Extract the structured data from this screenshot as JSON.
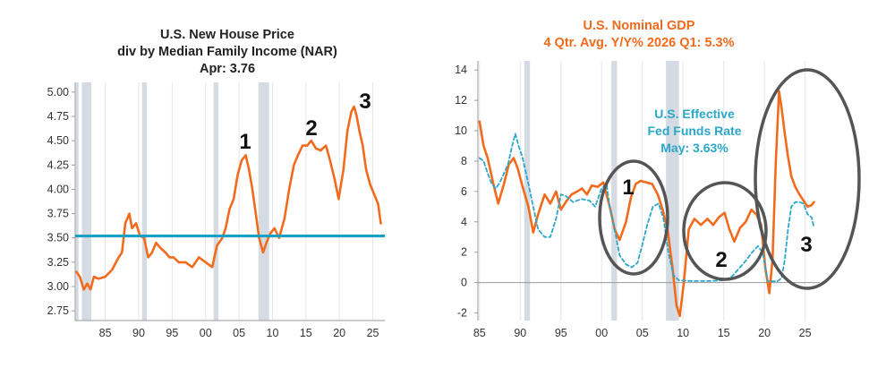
{
  "chart_data": [
    {
      "type": "line",
      "title": "U.S. New House Price",
      "subtitle": "div by Median Family Income (NAR)",
      "subtitle2": "Apr: 3.76",
      "xlabel": "",
      "ylabel": "",
      "xlim": [
        1980.5,
        2026.8
      ],
      "ylim": [
        2.65,
        5.1
      ],
      "x_ticks": [
        "85",
        "90",
        "95",
        "00",
        "05",
        "10",
        "15",
        "20",
        "25"
      ],
      "x_tick_values": [
        1985,
        1990,
        1995,
        2000,
        2005,
        2010,
        2015,
        2020,
        2025
      ],
      "y_ticks": [
        "2.75",
        "3.00",
        "3.25",
        "3.50",
        "3.75",
        "4.00",
        "4.25",
        "4.50",
        "4.75",
        "5.00"
      ],
      "y_tick_values": [
        2.75,
        3.0,
        3.25,
        3.5,
        3.75,
        4.0,
        4.25,
        4.5,
        4.75,
        5.0
      ],
      "grid": "vertical",
      "recessions": [
        [
          1980.6,
          1981.0
        ],
        [
          1981.5,
          1982.9
        ],
        [
          1990.5,
          1991.2
        ],
        [
          2001.2,
          2001.9
        ],
        [
          2007.9,
          2009.5
        ]
      ],
      "reference_line": 3.52,
      "series": [
        {
          "color": "#f26b1d",
          "x": [
            1980.7,
            1981.2,
            1981.8,
            1982.3,
            1982.8,
            1983.3,
            1984,
            1985,
            1986,
            1987,
            1987.5,
            1988,
            1988.6,
            1989,
            1989.6,
            1990.2,
            1990.8,
            1991.4,
            1992,
            1992.6,
            1993.2,
            1994,
            1994.6,
            1995.2,
            1996,
            1997,
            1998,
            1999,
            2000,
            2001,
            2001.7,
            2002.5,
            2003,
            2003.6,
            2004.2,
            2004.8,
            2005.4,
            2006,
            2006.5,
            2007,
            2007.5,
            2008,
            2008.6,
            2009.1,
            2009.7,
            2010.3,
            2011,
            2011.8,
            2012.5,
            2013.2,
            2013.8,
            2014.5,
            2015.2,
            2015.8,
            2016.5,
            2017.2,
            2018,
            2018.6,
            2019.3,
            2019.9,
            2020.6,
            2021.2,
            2021.8,
            2022.2,
            2022.6,
            2023,
            2023.5,
            2024,
            2024.6,
            2025.2,
            2025.8,
            2026.2
          ],
          "y": [
            3.15,
            3.1,
            2.97,
            3.03,
            2.97,
            3.1,
            3.08,
            3.1,
            3.17,
            3.3,
            3.35,
            3.65,
            3.75,
            3.6,
            3.65,
            3.52,
            3.5,
            3.3,
            3.35,
            3.45,
            3.4,
            3.35,
            3.3,
            3.3,
            3.25,
            3.25,
            3.2,
            3.3,
            3.25,
            3.2,
            3.42,
            3.5,
            3.6,
            3.8,
            3.9,
            4.15,
            4.3,
            4.35,
            4.2,
            4.0,
            3.75,
            3.5,
            3.35,
            3.45,
            3.55,
            3.6,
            3.5,
            3.7,
            4.0,
            4.25,
            4.35,
            4.45,
            4.45,
            4.5,
            4.42,
            4.4,
            4.45,
            4.3,
            4.1,
            3.9,
            4.2,
            4.6,
            4.8,
            4.85,
            4.75,
            4.6,
            4.45,
            4.2,
            4.05,
            3.95,
            3.85,
            3.65
          ]
        }
      ],
      "annotations": [
        "1",
        "2",
        "3"
      ]
    },
    {
      "type": "line",
      "title": "U.S. Nominal GDP",
      "subtitle": "4 Qtr. Avg. Y/Y%  2026 Q1: 5.3%",
      "xlabel": "",
      "ylabel": "",
      "xlim": [
        1984.8,
        2026.8
      ],
      "ylim": [
        -2.5,
        14.6
      ],
      "x_ticks": [
        "85",
        "90",
        "95",
        "00",
        "05",
        "10",
        "15",
        "20",
        "25"
      ],
      "x_tick_values": [
        1985,
        1990,
        1995,
        2000,
        2005,
        2010,
        2015,
        2020,
        2025
      ],
      "y_ticks": [
        "-2",
        "0",
        "2",
        "4",
        "6",
        "8",
        "10",
        "12",
        "14"
      ],
      "y_tick_values": [
        -2,
        0,
        2,
        4,
        6,
        8,
        10,
        12,
        14
      ],
      "grid": "vertical",
      "recessions": [
        [
          1990.5,
          1991.2
        ],
        [
          2001.2,
          2001.9
        ],
        [
          2007.9,
          2009.5
        ]
      ],
      "zero_line": 0,
      "series": [
        {
          "name": "",
          "color": "#f26b1d",
          "style": "solid",
          "x": [
            1985,
            1985.5,
            1986,
            1986.7,
            1987.3,
            1988,
            1988.6,
            1989.2,
            1989.7,
            1990.3,
            1991,
            1991.6,
            1992.2,
            1993,
            1993.7,
            1994.4,
            1995,
            1995.6,
            1996.3,
            1997,
            1997.6,
            1998.2,
            1998.8,
            1999.5,
            2000.2,
            2001,
            2001.6,
            2002.2,
            2003,
            2003.6,
            2004.2,
            2004.8,
            2005.5,
            2006.2,
            2006.9,
            2007.5,
            2008.1,
            2008.7,
            2009.2,
            2009.6,
            2010.1,
            2010.7,
            2011.4,
            2012.2,
            2013,
            2013.7,
            2014.4,
            2015.1,
            2015.7,
            2016.3,
            2017,
            2017.7,
            2018.4,
            2019,
            2019.6,
            2020.1,
            2020.6,
            2021,
            2021.4,
            2021.8,
            2022.1,
            2022.5,
            2022.9,
            2023.3,
            2023.8,
            2024.3,
            2024.8,
            2025.3,
            2025.8,
            2026.1
          ],
          "y": [
            10.6,
            9,
            8.2,
            6.5,
            5.2,
            6.5,
            7.8,
            8.2,
            7.5,
            6.3,
            5.0,
            3.3,
            4.5,
            5.8,
            5.2,
            6.0,
            4.8,
            5.3,
            5.8,
            6.0,
            6.2,
            5.8,
            6.4,
            6.3,
            6.6,
            5.0,
            3.5,
            2.8,
            4.0,
            5.6,
            6.5,
            6.7,
            6.6,
            6.5,
            5.8,
            4.8,
            3.5,
            1.0,
            -1.5,
            -2.2,
            0,
            3.5,
            4.2,
            3.8,
            4.2,
            3.8,
            4.3,
            4.6,
            3.5,
            2.7,
            3.6,
            4.0,
            4.8,
            4.5,
            3.8,
            1.0,
            -0.7,
            1.5,
            8.0,
            12.6,
            11.5,
            9.8,
            8.3,
            7.0,
            6.3,
            5.8,
            5.4,
            5.0,
            5.1,
            5.3
          ]
        },
        {
          "name": "U.S. Effective Fed Funds Rate",
          "color": "#2aa7c9",
          "style": "dashed",
          "x": [
            1985,
            1985.5,
            1986,
            1986.5,
            1987,
            1987.5,
            1988,
            1988.5,
            1989,
            1989.4,
            1989.8,
            1990.3,
            1991,
            1991.6,
            1992.2,
            1993,
            1993.7,
            1994.4,
            1995,
            1995.6,
            1996.5,
            1997.5,
            1998.5,
            1999.2,
            2000,
            2000.6,
            2001,
            2001.6,
            2002.2,
            2003,
            2003.7,
            2004.4,
            2005,
            2005.6,
            2006.3,
            2007,
            2007.6,
            2008.2,
            2008.8,
            2009.5,
            2011,
            2013,
            2015,
            2016,
            2017,
            2017.8,
            2018.5,
            2019.2,
            2019.8,
            2020.4,
            2021,
            2021.6,
            2022.1,
            2022.5,
            2022.9,
            2023.3,
            2023.8,
            2024.3,
            2024.8,
            2025.3,
            2025.8,
            2026.1
          ],
          "y": [
            8.2,
            8.0,
            7.2,
            6.5,
            6.2,
            6.6,
            7.2,
            7.8,
            9.0,
            9.8,
            9.0,
            8.2,
            6.5,
            5.0,
            3.5,
            3.0,
            3.0,
            4.2,
            5.8,
            5.7,
            5.3,
            5.5,
            5.4,
            5.0,
            6.2,
            6.5,
            5.0,
            3.5,
            1.8,
            1.2,
            1.0,
            1.3,
            2.5,
            3.8,
            5.0,
            5.2,
            4.2,
            2.0,
            0.5,
            0.15,
            0.1,
            0.1,
            0.15,
            0.4,
            1.0,
            1.5,
            2.0,
            2.4,
            2.0,
            0.1,
            0.08,
            0.08,
            0.3,
            1.5,
            3.5,
            5.0,
            5.3,
            5.3,
            5.2,
            4.5,
            4.3,
            3.6
          ]
        }
      ],
      "annotations": [
        "U.S. Effective",
        "Fed Funds Rate",
        "May: 3.63%",
        "1",
        "2",
        "3"
      ]
    }
  ],
  "colors": {
    "series_orange": "#f26b1d",
    "fed_blue": "#2aa7c9",
    "recession_gray": "#d5dbe3",
    "ellipse_gray": "#555555"
  }
}
